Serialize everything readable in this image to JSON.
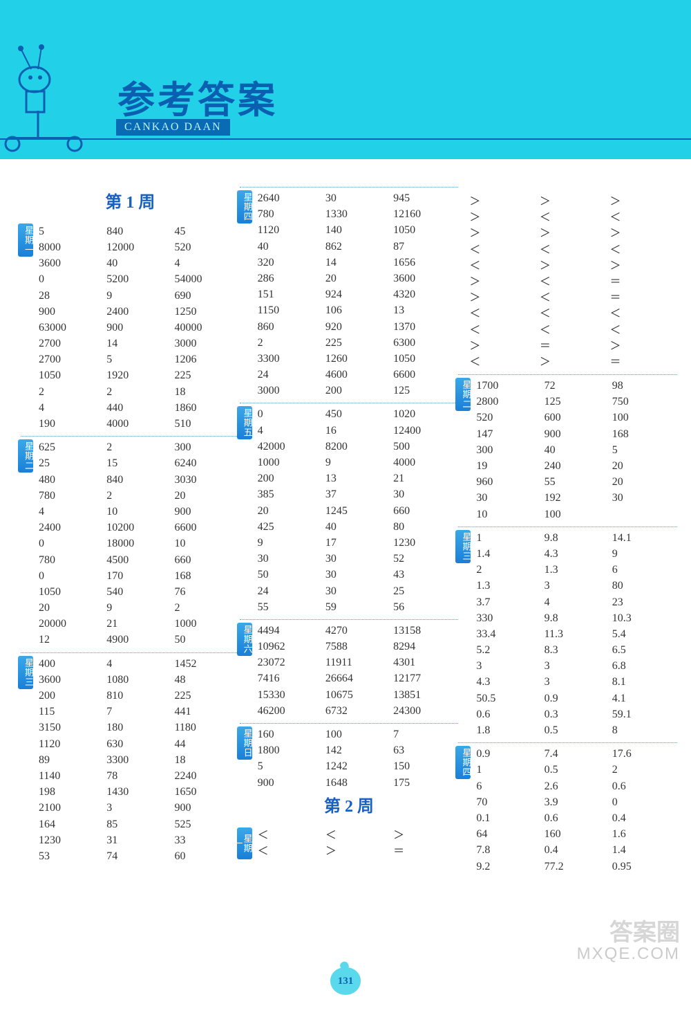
{
  "header": {
    "title_cn": "参考答案",
    "title_pinyin": "CANKAO DAAN"
  },
  "page_number": "131",
  "watermark": {
    "line1": "答案圈",
    "line2": "MXQE.COM"
  },
  "weeks": {
    "w1": "第 1 周",
    "w2": "第 2 周"
  },
  "days": {
    "d1": "星期一",
    "d2": "星期二",
    "d3": "星期三",
    "d4": "星期四",
    "d5": "星期五",
    "d6": "星期六",
    "d7": "星期日"
  },
  "col1": {
    "sec1": [
      [
        "5",
        "840",
        "45"
      ],
      [
        "8000",
        "12000",
        "520"
      ],
      [
        "3600",
        "40",
        "4"
      ],
      [
        "0",
        "5200",
        "54000"
      ],
      [
        "28",
        "9",
        "690"
      ],
      [
        "900",
        "2400",
        "1250"
      ],
      [
        "63000",
        "900",
        "40000"
      ],
      [
        "2700",
        "14",
        "3000"
      ],
      [
        "2700",
        "5",
        "1206"
      ],
      [
        "1050",
        "1920",
        "225"
      ],
      [
        "2",
        "2",
        "18"
      ],
      [
        "4",
        "440",
        "1860"
      ],
      [
        "190",
        "4000",
        "510"
      ]
    ],
    "sec2": [
      [
        "625",
        "2",
        "300"
      ],
      [
        "25",
        "15",
        "6240"
      ],
      [
        "480",
        "840",
        "3030"
      ],
      [
        "780",
        "2",
        "20"
      ],
      [
        "4",
        "10",
        "900"
      ],
      [
        "2400",
        "10200",
        "6600"
      ],
      [
        "0",
        "18000",
        "10"
      ],
      [
        "780",
        "4500",
        "660"
      ],
      [
        "0",
        "170",
        "168"
      ],
      [
        "1050",
        "540",
        "76"
      ],
      [
        "20",
        "9",
        "2"
      ],
      [
        "20000",
        "21",
        "1000"
      ],
      [
        "12",
        "4900",
        "50"
      ]
    ],
    "sec3": [
      [
        "400",
        "4",
        "1452"
      ],
      [
        "3600",
        "1080",
        "48"
      ],
      [
        "200",
        "810",
        "225"
      ],
      [
        "115",
        "7",
        "441"
      ],
      [
        "3150",
        "180",
        "1180"
      ],
      [
        "1120",
        "630",
        "44"
      ],
      [
        "89",
        "3300",
        "18"
      ],
      [
        "1140",
        "78",
        "2240"
      ],
      [
        "198",
        "1430",
        "1650"
      ],
      [
        "2100",
        "3",
        "900"
      ],
      [
        "164",
        "85",
        "525"
      ],
      [
        "1230",
        "31",
        "33"
      ],
      [
        "53",
        "74",
        "60"
      ]
    ]
  },
  "col2": {
    "sec4": [
      [
        "2640",
        "30",
        "945"
      ],
      [
        "780",
        "1330",
        "12160"
      ],
      [
        "1120",
        "140",
        "1050"
      ],
      [
        "40",
        "862",
        "87"
      ],
      [
        "320",
        "14",
        "1656"
      ],
      [
        "286",
        "20",
        "3600"
      ],
      [
        "151",
        "924",
        "4320"
      ],
      [
        "1150",
        "106",
        "13"
      ],
      [
        "860",
        "920",
        "1370"
      ],
      [
        "2",
        "225",
        "6300"
      ],
      [
        "3300",
        "1260",
        "1050"
      ],
      [
        "24",
        "4600",
        "6600"
      ],
      [
        "3000",
        "200",
        "125"
      ]
    ],
    "sec5": [
      [
        "0",
        "450",
        "1020"
      ],
      [
        "4",
        "16",
        "12400"
      ],
      [
        "42000",
        "8200",
        "500"
      ],
      [
        "1000",
        "9",
        "4000"
      ],
      [
        "200",
        "13",
        "21"
      ],
      [
        "385",
        "37",
        "30"
      ],
      [
        "20",
        "1245",
        "660"
      ],
      [
        "425",
        "40",
        "80"
      ],
      [
        "9",
        "17",
        "1230"
      ],
      [
        "30",
        "30",
        "52"
      ],
      [
        "50",
        "30",
        "43"
      ],
      [
        "24",
        "30",
        "25"
      ],
      [
        "55",
        "59",
        "56"
      ]
    ],
    "sec6": [
      [
        "4494",
        "4270",
        "13158"
      ],
      [
        "10962",
        "7588",
        "8294"
      ],
      [
        "23072",
        "11911",
        "4301"
      ],
      [
        "7416",
        "26664",
        "12177"
      ],
      [
        "15330",
        "10675",
        "13851"
      ],
      [
        "46200",
        "6732",
        "24300"
      ]
    ],
    "sec7": [
      [
        "160",
        "100",
        "7"
      ],
      [
        "1800",
        "142",
        "63"
      ],
      [
        "5",
        "1242",
        "150"
      ],
      [
        "900",
        "1648",
        "175"
      ]
    ],
    "sec8": [
      [
        "＜",
        "＜",
        "＞"
      ],
      [
        "＜",
        "＞",
        "＝"
      ]
    ]
  },
  "col3": {
    "sec8b": [
      [
        "＞",
        "＞",
        "＞"
      ],
      [
        "＞",
        "＜",
        "＜"
      ],
      [
        "＞",
        "＞",
        "＞"
      ],
      [
        "＜",
        "＜",
        "＜"
      ],
      [
        "＜",
        "＞",
        "＞"
      ],
      [
        "＞",
        "＜",
        "＝"
      ],
      [
        "＞",
        "＜",
        "＝"
      ],
      [
        "＜",
        "＜",
        "＜"
      ],
      [
        "＜",
        "＜",
        "＜"
      ],
      [
        "＞",
        "＝",
        "＞"
      ],
      [
        "＜",
        "＞",
        "＝"
      ]
    ],
    "sec9": [
      [
        "1700",
        "72",
        "98"
      ],
      [
        "2800",
        "125",
        "750"
      ],
      [
        "520",
        "600",
        "100"
      ],
      [
        "147",
        "900",
        "168"
      ],
      [
        "300",
        "40",
        "5"
      ],
      [
        "19",
        "240",
        "20"
      ],
      [
        "960",
        "55",
        "20"
      ],
      [
        "30",
        "192",
        "30"
      ],
      [
        "10",
        "100",
        ""
      ]
    ],
    "sec10": [
      [
        "1",
        "9.8",
        "14.1"
      ],
      [
        "1.4",
        "4.3",
        "9"
      ],
      [
        "2",
        "1.3",
        "6"
      ],
      [
        "1.3",
        "3",
        "80"
      ],
      [
        "3.7",
        "4",
        "23"
      ],
      [
        "330",
        "9.8",
        "10.3"
      ],
      [
        "33.4",
        "11.3",
        "5.4"
      ],
      [
        "5.2",
        "8.3",
        "6.5"
      ],
      [
        "3",
        "3",
        "6.8"
      ],
      [
        "4.3",
        "3",
        "8.1"
      ],
      [
        "50.5",
        "0.9",
        "4.1"
      ],
      [
        "0.6",
        "0.3",
        "59.1"
      ],
      [
        "1.8",
        "0.5",
        "8"
      ]
    ],
    "sec11": [
      [
        "0.9",
        "7.4",
        "17.6"
      ],
      [
        "1",
        "0.5",
        "2"
      ],
      [
        "6",
        "2.6",
        "0.6"
      ],
      [
        "70",
        "3.9",
        "0"
      ],
      [
        "0.1",
        "0.6",
        "0.4"
      ],
      [
        "64",
        "160",
        "1.6"
      ],
      [
        "7.8",
        "0.4",
        "1.4"
      ],
      [
        "9.2",
        "77.2",
        "0.95"
      ]
    ]
  }
}
